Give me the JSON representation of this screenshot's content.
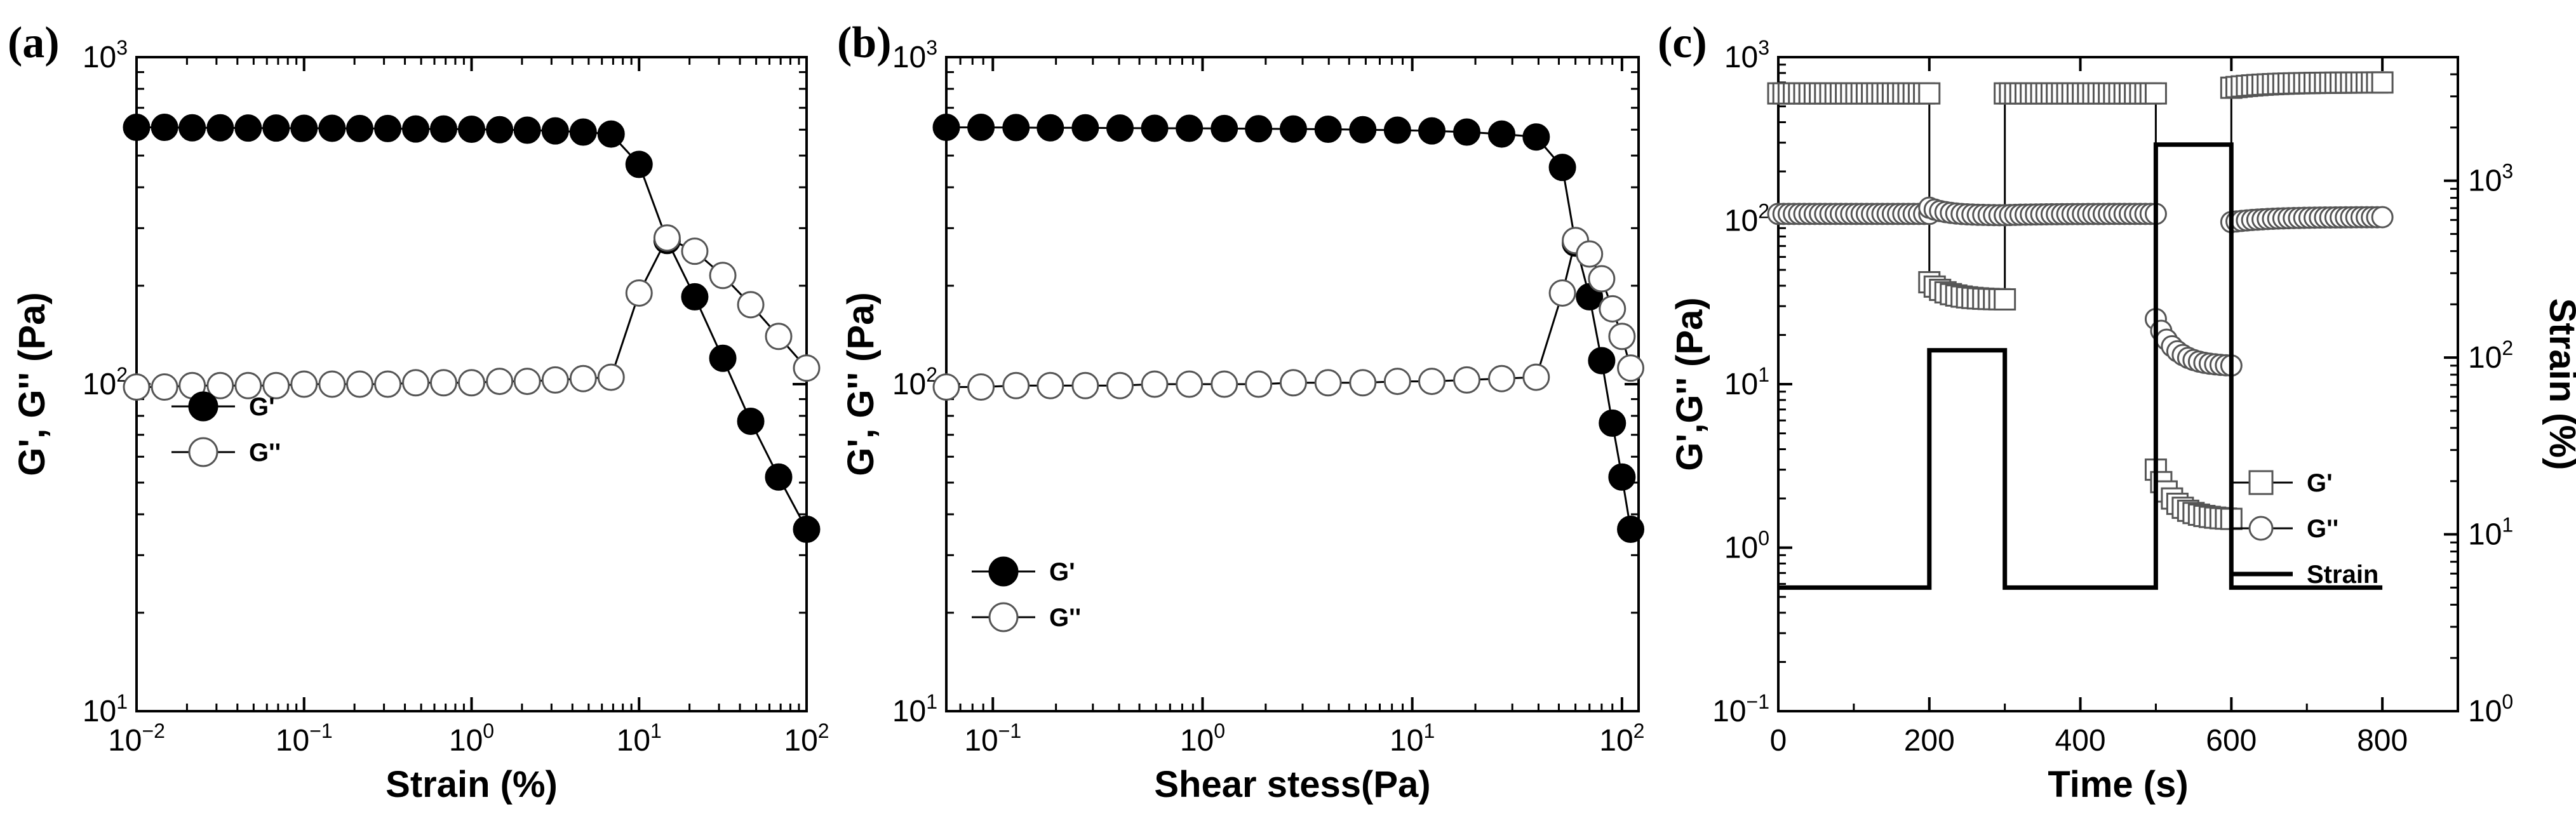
{
  "chart_data": [
    {
      "panel": "(a)",
      "type": "line",
      "title": "",
      "xlabel": "Strain (%)",
      "ylabel": "G', G'' (Pa)",
      "xscale": "log",
      "yscale": "log",
      "xlim": [
        0.01,
        100
      ],
      "ylim": [
        10,
        1000
      ],
      "grid": false,
      "legend_position": "center-left",
      "xticks": [
        {
          "base": "10",
          "exp": "−2",
          "value": 0.01
        },
        {
          "base": "10",
          "exp": "−1",
          "value": 0.1
        },
        {
          "base": "10",
          "exp": "0",
          "value": 1
        },
        {
          "base": "10",
          "exp": "1",
          "value": 10
        },
        {
          "base": "10",
          "exp": "2",
          "value": 100
        }
      ],
      "yticks": [
        {
          "base": "10",
          "exp": "1",
          "value": 10
        },
        {
          "base": "10",
          "exp": "2",
          "value": 100
        },
        {
          "base": "10",
          "exp": "3",
          "value": 1000
        }
      ],
      "series": [
        {
          "name": "G'",
          "marker": "filled-circle",
          "x": [
            0.01,
            0.0147,
            0.0215,
            0.0316,
            0.0464,
            0.0681,
            0.1,
            0.147,
            0.215,
            0.316,
            0.464,
            0.681,
            1.0,
            1.47,
            2.15,
            3.16,
            4.64,
            6.81,
            10.0,
            14.7,
            21.5,
            31.6,
            46.4,
            68.1,
            100
          ],
          "y": [
            610,
            610,
            608,
            608,
            607,
            607,
            606,
            606,
            605,
            605,
            603,
            603,
            602,
            600,
            598,
            595,
            590,
            582,
            470,
            275,
            185,
            120,
            77,
            52,
            36
          ]
        },
        {
          "name": "G''",
          "marker": "open-circle",
          "x": [
            0.01,
            0.0147,
            0.0215,
            0.0316,
            0.0464,
            0.0681,
            0.1,
            0.147,
            0.215,
            0.316,
            0.464,
            0.681,
            1.0,
            1.47,
            2.15,
            3.16,
            4.64,
            6.81,
            10.0,
            14.7,
            21.5,
            31.6,
            46.4,
            68.1,
            100
          ],
          "y": [
            98,
            98,
            99,
            99,
            99,
            99,
            100,
            100,
            100,
            100,
            101,
            101,
            101,
            102,
            102,
            103,
            104,
            105,
            190,
            280,
            255,
            215,
            175,
            140,
            112
          ]
        }
      ]
    },
    {
      "panel": "(b)",
      "type": "line",
      "title": "",
      "xlabel": "Shear stess(Pa)",
      "ylabel": "G', G'' (Pa)",
      "xscale": "log",
      "yscale": "log",
      "xlim": [
        0.06,
        120
      ],
      "ylim": [
        10,
        1000
      ],
      "grid": false,
      "legend_position": "lower-left",
      "xticks": [
        {
          "base": "10",
          "exp": "−1",
          "value": 0.1
        },
        {
          "base": "10",
          "exp": "0",
          "value": 1
        },
        {
          "base": "10",
          "exp": "1",
          "value": 10
        },
        {
          "base": "10",
          "exp": "2",
          "value": 100
        }
      ],
      "yticks": [
        {
          "base": "10",
          "exp": "1",
          "value": 10
        },
        {
          "base": "10",
          "exp": "2",
          "value": 100
        },
        {
          "base": "10",
          "exp": "3",
          "value": 1000
        }
      ],
      "series": [
        {
          "name": "G'",
          "marker": "filled-circle",
          "x": [
            0.06,
            0.0878,
            0.129,
            0.188,
            0.276,
            0.404,
            0.591,
            0.865,
            1.27,
            1.85,
            2.71,
            3.97,
            5.81,
            8.5,
            12.4,
            18.2,
            26.7,
            39,
            52,
            60,
            70,
            80,
            90,
            100,
            110
          ],
          "y": [
            610,
            610,
            609,
            608,
            608,
            607,
            606,
            606,
            605,
            604,
            603,
            602,
            600,
            598,
            595,
            590,
            582,
            570,
            460,
            270,
            185,
            118,
            76,
            52,
            36
          ]
        },
        {
          "name": "G''",
          "marker": "open-circle",
          "x": [
            0.06,
            0.0878,
            0.129,
            0.188,
            0.276,
            0.404,
            0.591,
            0.865,
            1.27,
            1.85,
            2.71,
            3.97,
            5.81,
            8.5,
            12.4,
            18.2,
            26.7,
            39,
            52,
            60,
            70,
            80,
            90,
            100,
            110
          ],
          "y": [
            98,
            98,
            99,
            99,
            99,
            99,
            100,
            100,
            100,
            100,
            101,
            101,
            101,
            102,
            102,
            103,
            104,
            105,
            190,
            275,
            250,
            210,
            170,
            140,
            112
          ]
        }
      ]
    },
    {
      "panel": "(c)",
      "type": "line",
      "title": "",
      "xlabel": "Time (s)",
      "ylabel": "G',G'' (Pa)",
      "y2label": "Strain (%)",
      "xscale": "linear",
      "yscale": "log",
      "y2scale": "log",
      "xlim": [
        0,
        900
      ],
      "ylim": [
        0.1,
        1000
      ],
      "y2lim": [
        1,
        5000
      ],
      "grid": false,
      "legend_position": "center-right",
      "xticks": [
        {
          "label": "0",
          "value": 0
        },
        {
          "label": "200",
          "value": 200
        },
        {
          "label": "400",
          "value": 400
        },
        {
          "label": "600",
          "value": 600
        },
        {
          "label": "800",
          "value": 800
        }
      ],
      "yticks": [
        {
          "base": "10",
          "exp": "−1",
          "value": 0.1
        },
        {
          "base": "10",
          "exp": "0",
          "value": 1
        },
        {
          "base": "10",
          "exp": "1",
          "value": 10
        },
        {
          "base": "10",
          "exp": "2",
          "value": 100
        },
        {
          "base": "10",
          "exp": "3",
          "value": 1000
        }
      ],
      "y2ticks": [
        {
          "base": "10",
          "exp": "0",
          "value": 1
        },
        {
          "base": "10",
          "exp": "1",
          "value": 10
        },
        {
          "base": "10",
          "exp": "2",
          "value": 100
        },
        {
          "base": "10",
          "exp": "3",
          "value": 1000
        }
      ],
      "series": [
        {
          "name": "G'",
          "marker": "open-square",
          "axis": "left",
          "segments": [
            {
              "x_start": 0,
              "x_end": 200,
              "points": 30,
              "y": [
                600,
                600
              ]
            },
            {
              "x_start": 200,
              "x_end": 300,
              "points": 15,
              "y": [
                42,
                33
              ]
            },
            {
              "x_start": 300,
              "x_end": 500,
              "points": 30,
              "y": [
                600,
                600
              ]
            },
            {
              "x_start": 500,
              "x_end": 600,
              "points": 15,
              "y": [
                3.0,
                1.5
              ]
            },
            {
              "x_start": 600,
              "x_end": 800,
              "points": 30,
              "y": [
                650,
                700
              ]
            }
          ]
        },
        {
          "name": "G''",
          "marker": "open-circle",
          "axis": "left",
          "segments": [
            {
              "x_start": 0,
              "x_end": 200,
              "points": 30,
              "y": [
                110,
                110
              ]
            },
            {
              "x_start": 200,
              "x_end": 300,
              "points": 15,
              "y": [
                120,
                108
              ]
            },
            {
              "x_start": 300,
              "x_end": 500,
              "points": 30,
              "y": [
                108,
                110
              ]
            },
            {
              "x_start": 500,
              "x_end": 600,
              "points": 15,
              "y": [
                25,
                13
              ]
            },
            {
              "x_start": 600,
              "x_end": 800,
              "points": 30,
              "y": [
                98,
                105
              ]
            }
          ]
        },
        {
          "name": "Strain",
          "marker": "none",
          "axis": "right",
          "x": [
            0,
            200,
            200,
            300,
            300,
            500,
            500,
            600,
            600,
            800
          ],
          "y": [
            5,
            5,
            110,
            110,
            5,
            5,
            1600,
            1600,
            5,
            5
          ]
        }
      ]
    }
  ]
}
